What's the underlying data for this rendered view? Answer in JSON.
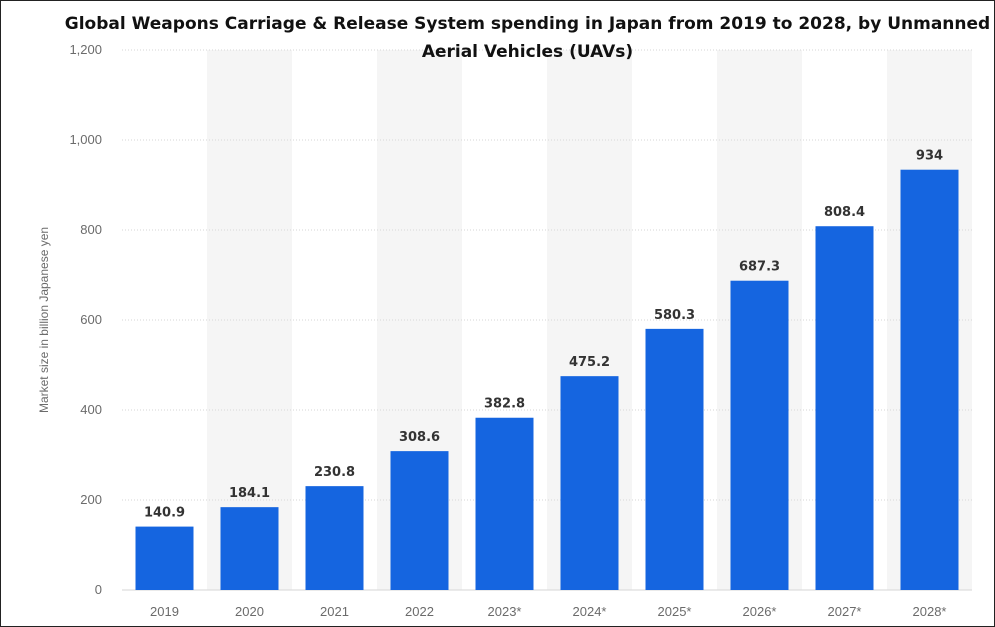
{
  "chart_data": {
    "type": "bar",
    "title_lines": [
      "Global Weapons Carriage & Release System  spending in Japan from 2019 to 2028, by Unmanned",
      "Aerial Vehicles (UAVs)"
    ],
    "xlabel": "",
    "ylabel": "Market size in billion Japanese yen",
    "categories": [
      "2019",
      "2020",
      "2021",
      "2022",
      "2023*",
      "2024*",
      "2025*",
      "2026*",
      "2027*",
      "2028*"
    ],
    "values": [
      140.9,
      184.1,
      230.8,
      308.6,
      382.8,
      475.2,
      580.3,
      687.3,
      808.4,
      934
    ],
    "value_labels": [
      "140.9",
      "184.1",
      "230.8",
      "308.6",
      "382.8",
      "475.2",
      "580.3",
      "687.3",
      "808.4",
      "934"
    ],
    "ylim": [
      0,
      1200
    ],
    "yticks": [
      0,
      200,
      400,
      600,
      800,
      1000,
      1200
    ],
    "ytick_labels": [
      "0",
      "200",
      "400",
      "600",
      "800",
      "1,000",
      "1,200"
    ],
    "grid": true,
    "colors": {
      "bar": "#1565e0",
      "band": "#f5f5f5",
      "grid": "#d6d6d6"
    }
  }
}
